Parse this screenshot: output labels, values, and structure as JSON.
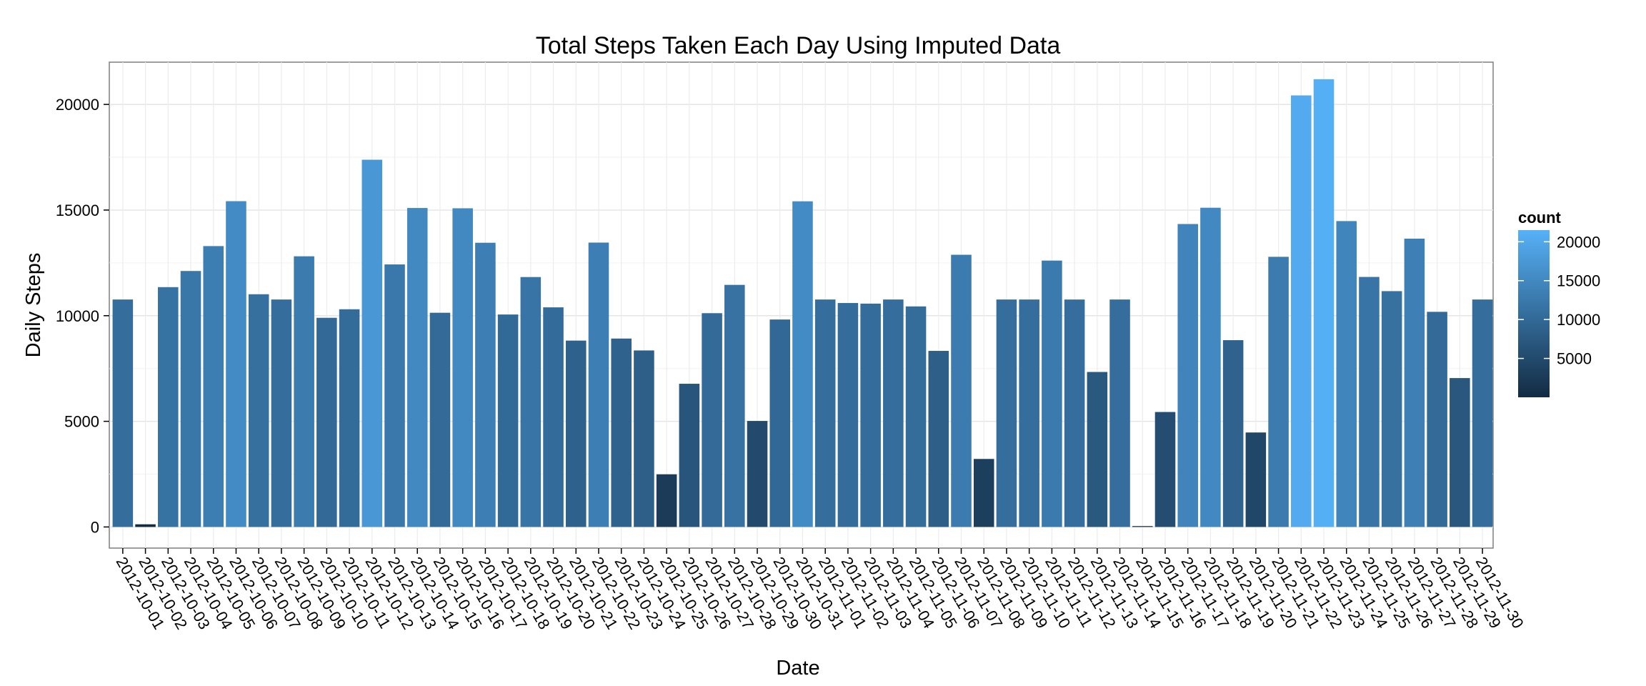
{
  "chart_data": {
    "type": "bar",
    "title": "Total Steps Taken Each Day Using Imputed Data",
    "xlabel": "Date",
    "ylabel": "Daily Steps",
    "ylim": [
      -1000,
      22000
    ],
    "yticks": [
      0,
      5000,
      10000,
      15000,
      20000
    ],
    "grid": true,
    "legend": {
      "title": "count",
      "position": "right",
      "ticks": [
        5000,
        10000,
        15000,
        20000
      ],
      "range": [
        0,
        21500
      ],
      "color_low": "#132B43",
      "color_high": "#56B1F7"
    },
    "categories": [
      "2012-10-01",
      "2012-10-02",
      "2012-10-03",
      "2012-10-04",
      "2012-10-05",
      "2012-10-06",
      "2012-10-07",
      "2012-10-08",
      "2012-10-09",
      "2012-10-10",
      "2012-10-11",
      "2012-10-12",
      "2012-10-13",
      "2012-10-14",
      "2012-10-15",
      "2012-10-16",
      "2012-10-17",
      "2012-10-18",
      "2012-10-19",
      "2012-10-20",
      "2012-10-21",
      "2012-10-22",
      "2012-10-23",
      "2012-10-24",
      "2012-10-25",
      "2012-10-26",
      "2012-10-27",
      "2012-10-28",
      "2012-10-29",
      "2012-10-30",
      "2012-10-31",
      "2012-11-01",
      "2012-11-02",
      "2012-11-03",
      "2012-11-04",
      "2012-11-05",
      "2012-11-06",
      "2012-11-07",
      "2012-11-08",
      "2012-11-09",
      "2012-11-10",
      "2012-11-11",
      "2012-11-12",
      "2012-11-13",
      "2012-11-14",
      "2012-11-15",
      "2012-11-16",
      "2012-11-17",
      "2012-11-18",
      "2012-11-19",
      "2012-11-20",
      "2012-11-21",
      "2012-11-22",
      "2012-11-23",
      "2012-11-24",
      "2012-11-25",
      "2012-11-26",
      "2012-11-27",
      "2012-11-28",
      "2012-11-29",
      "2012-11-30"
    ],
    "values": [
      10766,
      126,
      11352,
      12116,
      13294,
      15420,
      11015,
      10766,
      12811,
      9900,
      10304,
      17382,
      12426,
      15098,
      10139,
      15084,
      13452,
      10056,
      11829,
      10395,
      8821,
      13460,
      8918,
      8355,
      2492,
      6778,
      10119,
      11458,
      5018,
      9819,
      15414,
      10766,
      10600,
      10571,
      10766,
      10439,
      8334,
      12883,
      3219,
      10766,
      10766,
      12608,
      10765,
      7336,
      10766,
      41,
      5441,
      14339,
      15110,
      8841,
      4472,
      12787,
      20427,
      21194,
      14478,
      11834,
      11162,
      13646,
      10183,
      7047,
      10766
    ]
  }
}
